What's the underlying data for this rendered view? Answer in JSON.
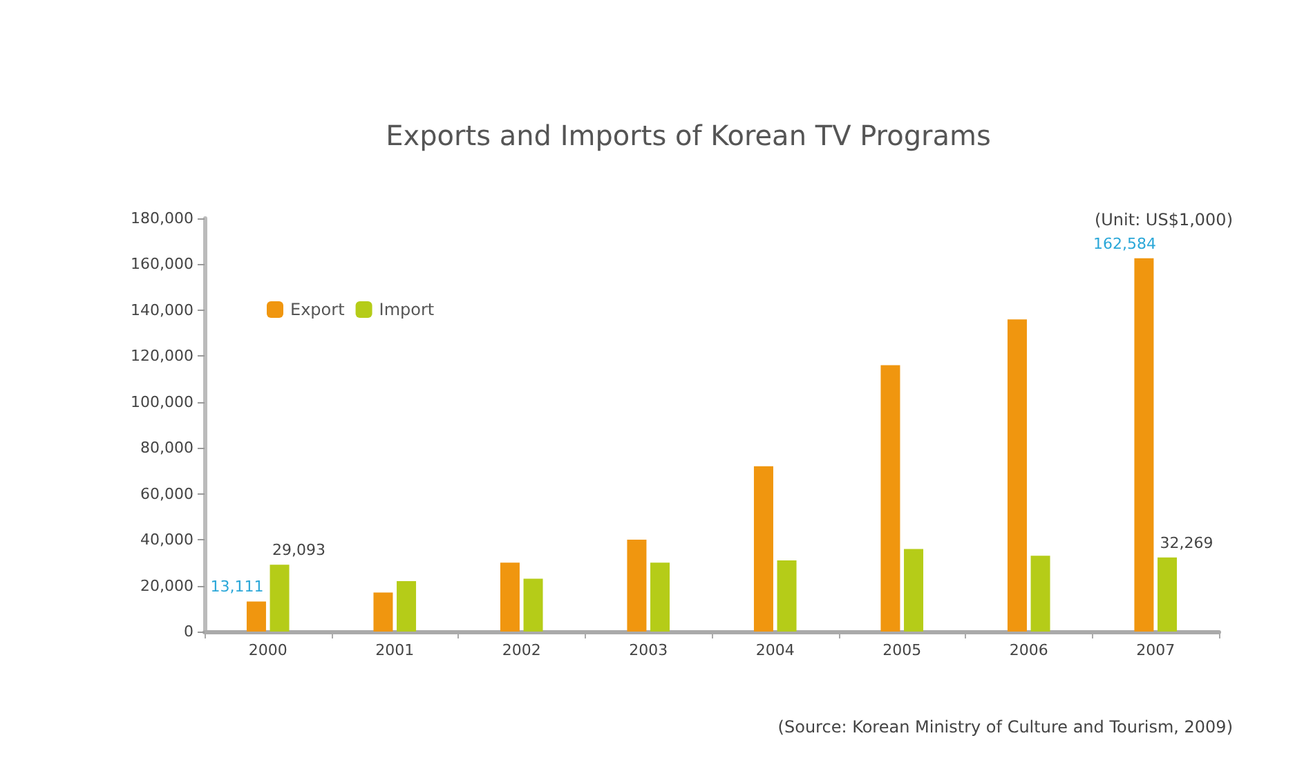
{
  "chart_data": {
    "type": "bar",
    "title": "Exports and Imports of Korean TV Programs",
    "categories": [
      "2000",
      "2001",
      "2002",
      "2003",
      "2004",
      "2005",
      "2006",
      "2007"
    ],
    "series": [
      {
        "name": "Export",
        "color": "#f0960f",
        "values": [
          13111,
          17000,
          30000,
          40000,
          72000,
          116000,
          136000,
          162584
        ],
        "value_labels": [
          "13,111",
          null,
          null,
          null,
          null,
          null,
          null,
          "162,584"
        ]
      },
      {
        "name": "Import",
        "color": "#b5cc18",
        "values": [
          29093,
          22000,
          23000,
          30000,
          31000,
          36000,
          33000,
          32269
        ],
        "value_labels": [
          "29,093",
          null,
          null,
          null,
          null,
          null,
          null,
          "32,269"
        ]
      }
    ],
    "ylim": [
      0,
      180000
    ],
    "yticks": [
      {
        "value": 0,
        "label": "0"
      },
      {
        "value": 20000,
        "label": "20,000"
      },
      {
        "value": 40000,
        "label": "40,000"
      },
      {
        "value": 60000,
        "label": "60,000"
      },
      {
        "value": 80000,
        "label": "80,000"
      },
      {
        "value": 100000,
        "label": "100,000"
      },
      {
        "value": 120000,
        "label": "120,000"
      },
      {
        "value": 140000,
        "label": "140,000"
      },
      {
        "value": 160000,
        "label": "160,000"
      },
      {
        "value": 180000,
        "label": "180,000"
      }
    ],
    "grid": false,
    "legend": "top left",
    "annotations": [
      "(Unit: US$1,000)",
      "(Source: Korean Ministry of Culture and Tourism, 2009)"
    ]
  }
}
